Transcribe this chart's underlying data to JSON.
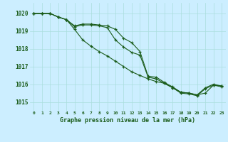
{
  "bg_color": "#cceeff",
  "grid_color": "#aadddd",
  "line_color": "#1a5c1a",
  "title": "Graphe pression niveau de la mer (hPa)",
  "xlim": [
    -0.5,
    23.5
  ],
  "ylim": [
    1014.5,
    1020.6
  ],
  "yticks": [
    1015,
    1016,
    1017,
    1018,
    1019,
    1020
  ],
  "xticks": [
    0,
    1,
    2,
    3,
    4,
    5,
    6,
    7,
    8,
    9,
    10,
    11,
    12,
    13,
    14,
    15,
    16,
    17,
    18,
    19,
    20,
    21,
    22,
    23
  ],
  "series1": [
    1020.0,
    1020.0,
    1020.0,
    1019.8,
    1019.65,
    1019.3,
    1019.4,
    1019.4,
    1019.35,
    1019.3,
    1019.1,
    1018.6,
    1018.35,
    1017.85,
    1016.45,
    1016.4,
    1016.1,
    1015.85,
    1015.55,
    1015.5,
    1015.4,
    1015.8,
    1016.0,
    1015.9
  ],
  "series2": [
    1020.0,
    1020.0,
    1020.0,
    1019.8,
    1019.65,
    1019.25,
    1019.35,
    1019.35,
    1019.3,
    1019.2,
    1018.5,
    1018.1,
    1017.8,
    1017.65,
    1016.4,
    1016.3,
    1016.05,
    1015.8,
    1015.5,
    1015.45,
    1015.35,
    1015.75,
    1015.95,
    1015.85
  ],
  "series3": [
    1020.0,
    1020.0,
    1020.0,
    1019.8,
    1019.65,
    1019.1,
    1018.5,
    1018.15,
    1017.85,
    1017.6,
    1017.3,
    1017.0,
    1016.7,
    1016.5,
    1016.3,
    1016.15,
    1016.05,
    1015.8,
    1015.55,
    1015.5,
    1015.4,
    1015.5,
    1015.95,
    1015.9
  ]
}
